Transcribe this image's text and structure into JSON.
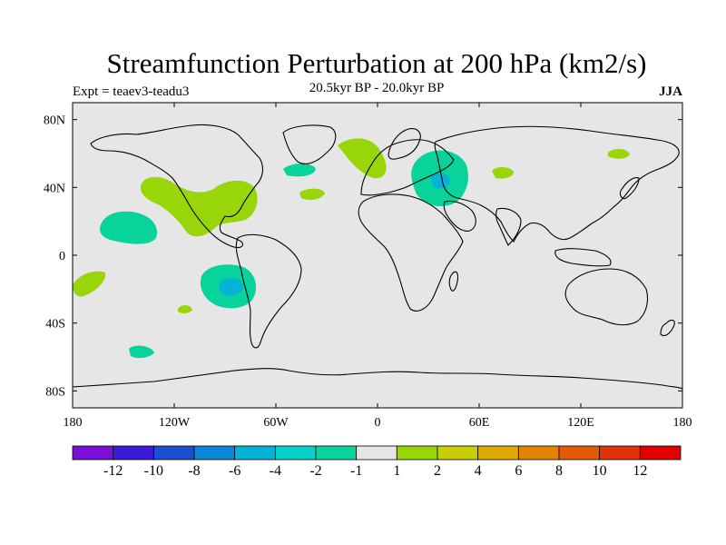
{
  "title": "Streamfunction Perturbation at 200 hPa (km2/s)",
  "experiment": "Expt = teaev3-teadu3",
  "subtitle": "20.5kyr BP - 20.0kyr BP",
  "season": "JJA",
  "lon_ticks": [
    "180",
    "120W",
    "60W",
    "0",
    "60E",
    "120E",
    "180"
  ],
  "lat_ticks": [
    "80N",
    "40N",
    "0",
    "40S",
    "80S"
  ],
  "colorbar": {
    "labels": [
      "-12",
      "-10",
      "-8",
      "-6",
      "-4",
      "-2",
      "-1",
      "1",
      "2",
      "4",
      "6",
      "8",
      "10",
      "12"
    ],
    "colors": [
      "#7a0fd8",
      "#3c1bd6",
      "#1a50d0",
      "#0b86d8",
      "#06b3d6",
      "#07d0c8",
      "#07d39b",
      "#e6e6e6",
      "#98d60a",
      "#c8cd05",
      "#ddab02",
      "#e38304",
      "#e25a08",
      "#e0320b",
      "#e00000"
    ]
  },
  "chart_data": {
    "type": "contour-map",
    "projection": "cylindrical equidistant",
    "xlim_lon": [
      -180,
      180
    ],
    "ylim_lat": [
      -90,
      90
    ],
    "anomalies": [
      {
        "region": "North Atlantic / Greenland",
        "lon": -10,
        "lat": 60,
        "sign": "positive",
        "class": "1 to 2"
      },
      {
        "region": "Eastern Europe / Black Sea",
        "lon": 35,
        "lat": 45,
        "sign": "negative",
        "class": "-2 to -1, core -4 to -2"
      },
      {
        "region": "Central Asia",
        "lon": 75,
        "lat": 50,
        "sign": "positive",
        "class": "1 to 2"
      },
      {
        "region": "Northeast Asia",
        "lon": 145,
        "lat": 60,
        "sign": "positive",
        "class": "1 to 2"
      },
      {
        "region": "North Pacific to Gulf of Mexico",
        "lon": -100,
        "lat": 30,
        "sign": "positive",
        "class": "1 to 2"
      },
      {
        "region": "Central Pacific (N)",
        "lon": -140,
        "lat": 18,
        "sign": "negative",
        "class": "-2 to -1"
      },
      {
        "region": "North Atlantic (mid)",
        "lon": -40,
        "lat": 50,
        "sign": "negative",
        "class": "-2 to -1"
      },
      {
        "region": "Mid Atlantic",
        "lon": -40,
        "lat": 37,
        "sign": "positive",
        "class": "1 to 2"
      },
      {
        "region": "Southeast Pacific",
        "lon": -85,
        "lat": -15,
        "sign": "negative",
        "class": "-2 to -1, core -4 to -2"
      },
      {
        "region": "South Pacific (W)",
        "lon": -170,
        "lat": -15,
        "sign": "positive",
        "class": "1 to 2"
      },
      {
        "region": "South Pacific (small)",
        "lon": -120,
        "lat": -30,
        "sign": "positive",
        "class": "1 to 2"
      },
      {
        "region": "Southern Ocean",
        "lon": -140,
        "lat": -58,
        "sign": "negative",
        "class": "-2 to -1"
      }
    ]
  }
}
